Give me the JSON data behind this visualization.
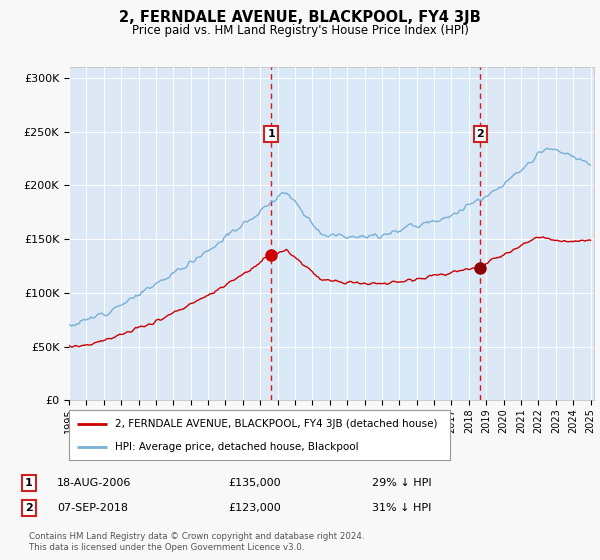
{
  "title": "2, FERNDALE AVENUE, BLACKPOOL, FY4 3JB",
  "subtitle": "Price paid vs. HM Land Registry's House Price Index (HPI)",
  "ylim": [
    0,
    310000
  ],
  "yticks": [
    0,
    50000,
    100000,
    150000,
    200000,
    250000,
    300000
  ],
  "ytick_labels": [
    "£0",
    "£50K",
    "£100K",
    "£150K",
    "£200K",
    "£250K",
    "£300K"
  ],
  "background_color": "#f8f8f8",
  "plot_bg_color": "#dce8f5",
  "shade_color": "#c8dcf0",
  "sale1_year": 2006.625,
  "sale1_price": 135000,
  "sale1_pct": "29%",
  "sale1_date": "18-AUG-2006",
  "sale2_year": 2018.667,
  "sale2_price": 123000,
  "sale2_pct": "31%",
  "sale2_date": "07-SEP-2018",
  "legend_line1": "2, FERNDALE AVENUE, BLACKPOOL, FY4 3JB (detached house)",
  "legend_line2": "HPI: Average price, detached house, Blackpool",
  "footer1": "Contains HM Land Registry data © Crown copyright and database right 2024.",
  "footer2": "This data is licensed under the Open Government Licence v3.0.",
  "red_color": "#cc0000",
  "blue_color": "#7ab0d4",
  "marker_box_color": "#cc2222",
  "xmin": 1995,
  "xmax": 2025.2
}
